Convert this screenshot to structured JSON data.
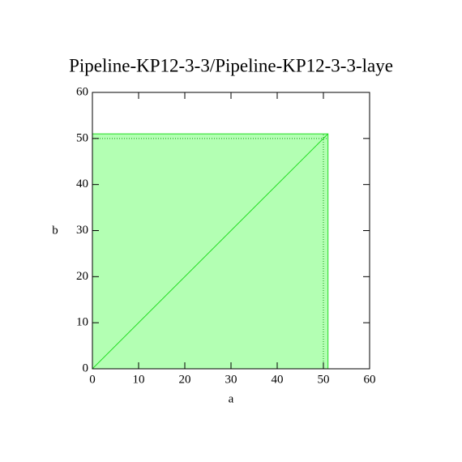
{
  "chart_data": {
    "type": "area",
    "title": "Pipeline-KP12-3-3/Pipeline-KP12-3-3-laye",
    "x_label": "a",
    "y_label": "b",
    "x": [
      0,
      51
    ],
    "series": [
      {
        "color": "#22dd22",
        "values": [
          0,
          51
        ]
      }
    ],
    "fill_region": {
      "xlim": [
        0,
        51
      ],
      "ylim": [
        0,
        51
      ],
      "color": "#b3ffb3",
      "edge_color": "#22dd22"
    },
    "dotted_lines": {
      "x": 50,
      "y": 50
    },
    "xlim": [
      0,
      60
    ],
    "ylim": [
      0,
      60
    ],
    "xticks": [
      0,
      10,
      20,
      30,
      40,
      50,
      60
    ],
    "yticks": [
      0,
      10,
      20,
      30,
      40,
      50,
      60
    ],
    "grid": false
  }
}
